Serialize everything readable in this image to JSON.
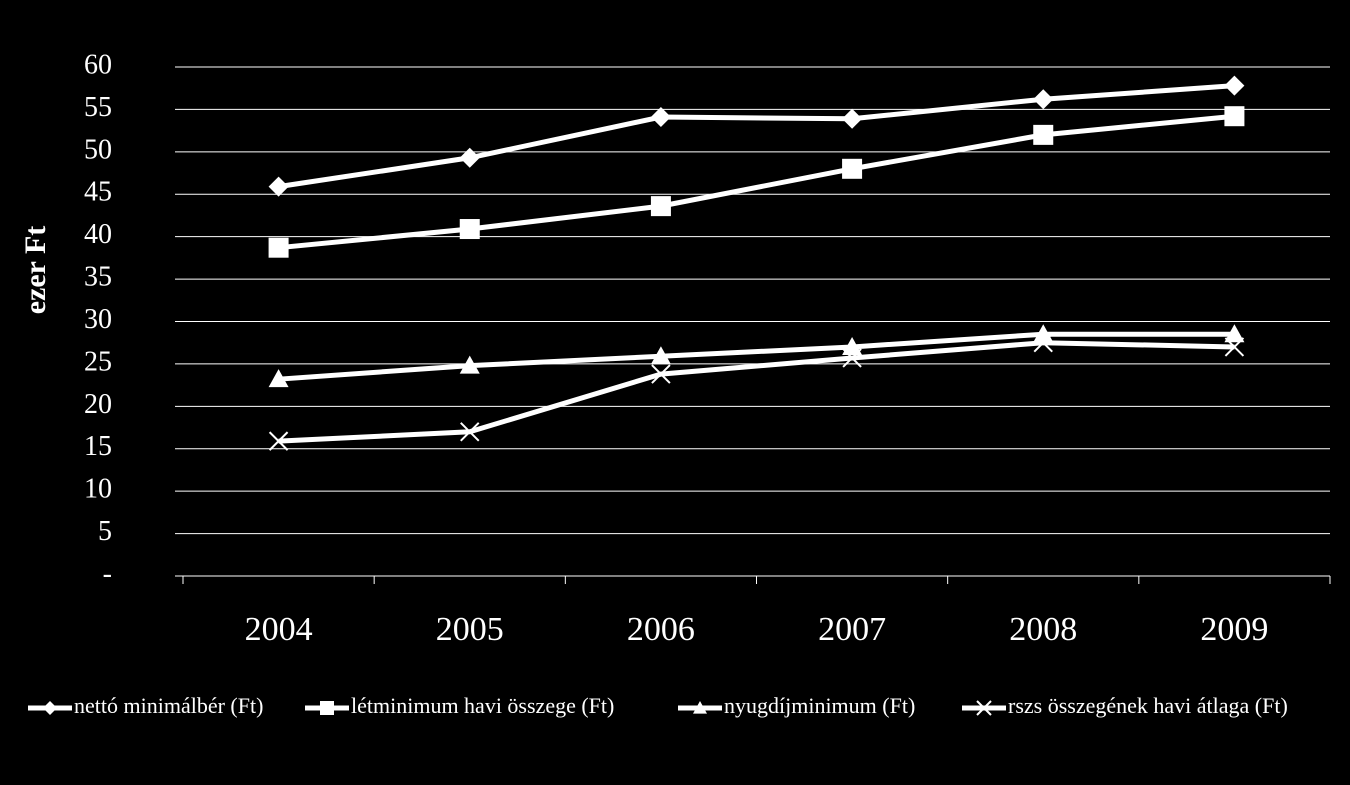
{
  "chart_data": {
    "type": "line",
    "y_label": "ezer Ft",
    "categories": [
      "2004",
      "2005",
      "2006",
      "2007",
      "2008",
      "2009"
    ],
    "series": [
      {
        "name": "nettó minimálbér (Ft)",
        "color": "#ffffff",
        "marker": "diamond",
        "values": [
          45.9,
          49.3,
          54.1,
          53.9,
          56.2,
          57.8
        ]
      },
      {
        "name": "létminimum havi összege  (Ft)",
        "color": "#ffffff",
        "marker": "square",
        "values": [
          38.7,
          40.9,
          43.6,
          48.0,
          52.0,
          54.2
        ]
      },
      {
        "name": "nyugdíjminimum (Ft)",
        "color": "#ffffff",
        "marker": "triangle",
        "values": [
          23.2,
          24.8,
          25.9,
          27.0,
          28.5,
          28.5
        ]
      },
      {
        "name": "rszs összegének havi átlaga (Ft)",
        "color": "#ffffff",
        "marker": "x",
        "values": [
          15.9,
          17.0,
          23.8,
          25.7,
          27.5,
          27.0
        ]
      }
    ],
    "ylim": [
      0,
      60
    ],
    "yticks": [
      {
        "value": 0,
        "label": "-"
      },
      5,
      10,
      15,
      20,
      25,
      30,
      35,
      40,
      45,
      50,
      55,
      60
    ],
    "grid": true,
    "legend": "bottom"
  }
}
